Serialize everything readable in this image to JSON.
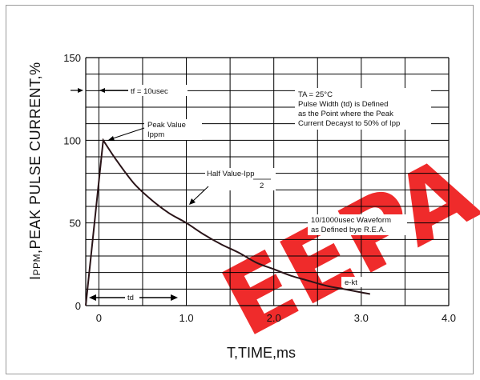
{
  "chart_data": {
    "type": "line",
    "xlabel": "T,TIME,ms",
    "ylabel": "IPPM,PEAK PULSE CURRENT,%",
    "xlim": [
      -0.15,
      4.0
    ],
    "ylim": [
      0,
      150
    ],
    "x_ticks": [
      "0",
      "1.0",
      "2.0",
      "3.0",
      "4.0"
    ],
    "y_ticks": [
      "0",
      "50",
      "100",
      "150"
    ],
    "grid": true,
    "series": [
      {
        "points": [
          [
            -0.15,
            0
          ],
          [
            0.05,
            100
          ],
          [
            0.2,
            88
          ],
          [
            0.4,
            74
          ],
          [
            0.6,
            64
          ],
          [
            0.8,
            56
          ],
          [
            1.0,
            50
          ],
          [
            1.2,
            43
          ],
          [
            1.4,
            37
          ],
          [
            1.6,
            32
          ],
          [
            1.8,
            26
          ],
          [
            2.0,
            22
          ],
          [
            2.2,
            18
          ],
          [
            2.4,
            15
          ],
          [
            2.6,
            12
          ],
          [
            2.8,
            10
          ],
          [
            3.0,
            8
          ],
          [
            3.1,
            7
          ]
        ]
      }
    ],
    "annotations": {
      "tf": "tf = 10usec",
      "peak_line1": "Peak Value",
      "peak_line2": "Ippm",
      "half_value": "Half Value-Ipp",
      "half_denominator": "2",
      "ta": "TA = 25°C",
      "pw1": "Pulse Width (td) is Defined",
      "pw2": "as the Point where the Peak",
      "pw3": "Current Decayst to 50% of Ipp",
      "wave1": "10/1000usec Waveform",
      "wave2": "as Defined bye R.E.A.",
      "ekt": "e-kt",
      "td": "td"
    }
  },
  "watermark": {
    "text": "EEPA",
    "color": "#ef2b2b"
  }
}
